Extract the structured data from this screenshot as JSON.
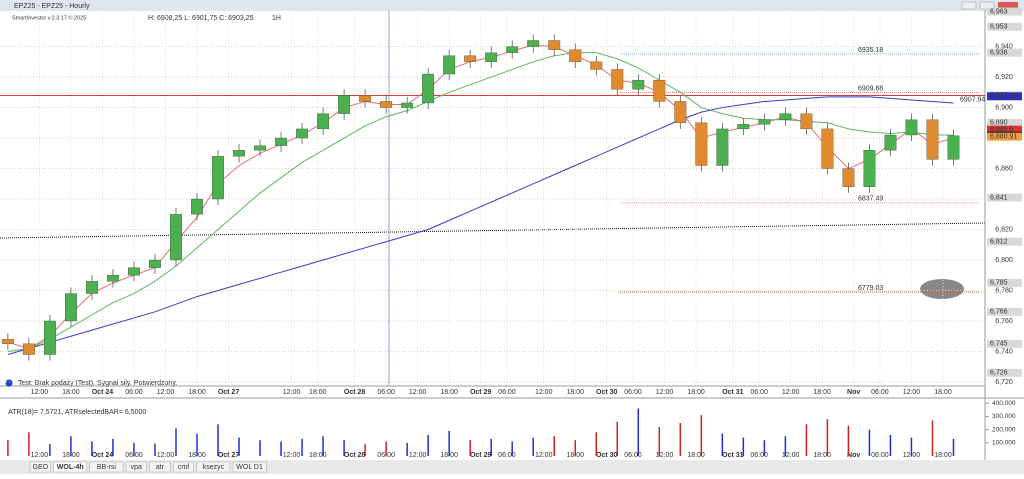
{
  "window": {
    "title": "EPZ25 - EPZ25 - Hourly"
  },
  "info": {
    "app": "SmartInvestor v.2.3.17 © 2025",
    "hlc": "H: 6908,25   L: 6901,75   C: 6903,25",
    "interval": "1H"
  },
  "status": "Test: Brak podaży (Test). Sygnał siły. Potwierdzony.",
  "tabs": [
    "GEO",
    "WOL-4h",
    "BB-rsi",
    "vpa",
    "atr",
    "cmf",
    "ksezyc",
    "WOL D1"
  ],
  "chart_data": [
    {
      "type": "candlestick",
      "x": [
        0,
        4,
        8,
        12,
        16,
        20,
        24,
        28,
        32,
        36,
        40,
        44,
        48,
        52,
        56,
        60,
        64,
        68,
        72,
        76,
        80,
        84,
        88,
        92,
        96,
        100,
        104,
        108,
        112,
        116,
        120,
        124,
        128,
        132,
        136,
        140,
        144,
        148,
        152,
        156,
        160,
        164,
        168,
        172,
        176,
        180
      ],
      "open": [
        6748,
        6745,
        6738,
        6760,
        6778,
        6786,
        6790,
        6795,
        6800,
        6830,
        6840,
        6868,
        6872,
        6875,
        6880,
        6886,
        6896,
        6908,
        6904,
        6900,
        6903,
        6922,
        6934,
        6930,
        6936,
        6940,
        6944,
        6938,
        6930,
        6925,
        6912,
        6918,
        6904,
        6890,
        6862,
        6886,
        6889,
        6892,
        6896,
        6886,
        6860,
        6848,
        6872,
        6882,
        6892,
        6866
      ],
      "high": [
        6752,
        6749,
        6764,
        6782,
        6790,
        6794,
        6799,
        6804,
        6834,
        6844,
        6872,
        6876,
        6879,
        6884,
        6890,
        6900,
        6912,
        6912,
        6908,
        6907,
        6926,
        6938,
        6938,
        6940,
        6944,
        6948,
        6948,
        6942,
        6934,
        6929,
        6922,
        6922,
        6908,
        6894,
        6890,
        6893,
        6896,
        6900,
        6900,
        6890,
        6864,
        6876,
        6886,
        6896,
        6896,
        6885.5
      ],
      "low": [
        6741,
        6734,
        6734,
        6756,
        6774,
        6782,
        6786,
        6791,
        6796,
        6826,
        6836,
        6864,
        6868,
        6871,
        6876,
        6882,
        6892,
        6900,
        6896,
        6896,
        6899,
        6918,
        6926,
        6926,
        6932,
        6936,
        6934,
        6926,
        6921,
        6908,
        6908,
        6900,
        6886,
        6858,
        6858,
        6882,
        6885,
        6888,
        6882,
        6856,
        6844,
        6844,
        6868,
        6878,
        6862,
        6862
      ],
      "close": [
        6745,
        6738,
        6760,
        6778,
        6786,
        6790,
        6795,
        6800,
        6830,
        6840,
        6868,
        6872,
        6875,
        6880,
        6886,
        6896,
        6908,
        6904,
        6900,
        6903,
        6922,
        6934,
        6930,
        6936,
        6940,
        6944,
        6938,
        6930,
        6925,
        6912,
        6918,
        6904,
        6890,
        6862,
        6886,
        6889,
        6892,
        6896,
        6886,
        6860,
        6848,
        6872,
        6882,
        6892,
        6866,
        6881.5
      ],
      "up_color": "#4caf50",
      "down_color": "#e08a30",
      "series": [
        {
          "color": "#e07070",
          "values": [
            6746,
            6742,
            6750,
            6765,
            6778,
            6785,
            6790,
            6795,
            6812,
            6828,
            6850,
            6862,
            6870,
            6876,
            6882,
            6890,
            6900,
            6904,
            6902,
            6902,
            6912,
            6925,
            6930,
            6933,
            6937,
            6941,
            6940,
            6934,
            6928,
            6918,
            6916,
            6910,
            6898,
            6880,
            6884,
            6887,
            6890,
            6894,
            6890,
            6874,
            6860,
            6866,
            6876,
            6886,
            6876,
            6880
          ]
        },
        {
          "color": "#5cb85c",
          "values": [
            6740,
            6742,
            6748,
            6756,
            6764,
            6772,
            6778,
            6786,
            6796,
            6808,
            6820,
            6832,
            6844,
            6854,
            6864,
            6872,
            6880,
            6888,
            6894,
            6898,
            6904,
            6910,
            6915,
            6920,
            6925,
            6930,
            6934,
            6936,
            6936,
            6932,
            6926,
            6918,
            6910,
            6900,
            6896,
            6893,
            6892,
            6892,
            6891,
            6890,
            6886,
            6884,
            6883,
            6884,
            6882,
            6882
          ]
        },
        {
          "color": "#3a3ad0",
          "values": [
            6738,
            6742,
            6746,
            6750,
            6754,
            6758,
            6762,
            6766,
            6771,
            6776,
            6780,
            6784,
            6788,
            6792,
            6796,
            6800,
            6804,
            6808,
            6812,
            6816,
            6820,
            6826,
            6832,
            6838,
            6844,
            6850,
            6856,
            6862,
            6868,
            6874,
            6880,
            6886,
            6892,
            6897,
            6900,
            6902,
            6904,
            6905,
            6906,
            6907,
            6907,
            6907,
            6906,
            6905,
            6904,
            6903
          ]
        }
      ],
      "xlim": [
        -1.5,
        186
      ],
      "xticks": [
        {
          "value": 6,
          "label": "12:00"
        },
        {
          "value": 12,
          "label": "18:00"
        },
        {
          "value": 18,
          "label": "Oct 24"
        },
        {
          "value": 24,
          "label": "06:00"
        },
        {
          "value": 30,
          "label": "12:00"
        },
        {
          "value": 36,
          "label": "18:00"
        },
        {
          "value": 42,
          "label": "Oct 27"
        },
        {
          "value": 54,
          "label": "12:00"
        },
        {
          "value": 59,
          "label": "18:00"
        },
        {
          "value": 66,
          "label": "Oct 28"
        },
        {
          "value": 72,
          "label": "06:00"
        },
        {
          "value": 78,
          "label": "12:00"
        },
        {
          "value": 84,
          "label": "18:00"
        },
        {
          "value": 90,
          "label": "Oct 29"
        },
        {
          "value": 95,
          "label": "06:00"
        },
        {
          "value": 102,
          "label": "12:00"
        },
        {
          "value": 108,
          "label": "18:00"
        },
        {
          "value": 114,
          "label": "Oct 30"
        },
        {
          "value": 119,
          "label": "06:00"
        },
        {
          "value": 125,
          "label": "12:00"
        },
        {
          "value": 131,
          "label": "18:00"
        },
        {
          "value": 138,
          "label": "Oct 31"
        },
        {
          "value": 143,
          "label": "06:00"
        },
        {
          "value": 149,
          "label": "12:00"
        },
        {
          "value": 155,
          "label": "18:00"
        },
        {
          "value": 161,
          "label": "Nov"
        },
        {
          "value": 166,
          "label": "06:00"
        },
        {
          "value": 172,
          "label": "12:00"
        },
        {
          "value": 178,
          "label": "18:00"
        }
      ],
      "ylim": [
        6718,
        6964
      ],
      "yticks": [
        {
          "value": 6720,
          "label": "6,720"
        },
        {
          "value": 6740,
          "label": "6,740"
        },
        {
          "value": 6760,
          "label": "6,760"
        },
        {
          "value": 6780,
          "label": "6,780"
        },
        {
          "value": 6800,
          "label": "6,800"
        },
        {
          "value": 6820,
          "label": "6,820"
        },
        {
          "value": 6840,
          "label": "6,840"
        },
        {
          "value": 6860,
          "label": "6,860"
        },
        {
          "value": 6880,
          "label": "6,880"
        },
        {
          "value": 6900,
          "label": "6,900"
        },
        {
          "value": 6920,
          "label": "6,920"
        },
        {
          "value": 6940,
          "label": "6,940"
        }
      ],
      "price_labels": [
        {
          "value": 6963,
          "label": "6,963",
          "color": "#d8d8d8"
        },
        {
          "value": 6953,
          "label": "6,953",
          "color": "#d8d8d8"
        },
        {
          "value": 6936,
          "label": "6,936",
          "color": "#d8d8d8"
        },
        {
          "value": 6908,
          "label": "6,908",
          "color": "#d8d8d8"
        },
        {
          "value": 6907.39,
          "label": "6,907.39",
          "color": "#3030c0"
        },
        {
          "value": 6890,
          "label": "6,890",
          "color": "#d8d8d8"
        },
        {
          "value": 6885.5,
          "label": "6,885.5",
          "color": "#e03030"
        },
        {
          "value": 6881.5,
          "label": "6,881.5",
          "color": "#111111"
        },
        {
          "value": 6880.91,
          "label": "6,880.91",
          "color": "#f0a040"
        },
        {
          "value": 6841,
          "label": "6,841",
          "color": "#d8d8d8"
        },
        {
          "value": 6812,
          "label": "6,812",
          "color": "#d8d8d8"
        },
        {
          "value": 6785,
          "label": "6,785",
          "color": "#d8d8d8"
        },
        {
          "value": 6766,
          "label": "6,766",
          "color": "#d8d8d8"
        },
        {
          "value": 6745,
          "label": "6,745",
          "color": "#d8d8d8"
        },
        {
          "value": 6726,
          "label": "6,726",
          "color": "#d8d8d8"
        }
      ],
      "resistance": {
        "value": 6907.94,
        "label": "6907.94",
        "color": "#d02020"
      },
      "levels": [
        {
          "value": 6935.18,
          "label": "6935.18",
          "color": "#7fb8d8"
        },
        {
          "value": 6909.88,
          "label": "6909.88",
          "color": "#e08080"
        },
        {
          "value": 6837.49,
          "label": "6837.49",
          "color": "#e8a0a0"
        },
        {
          "value": 6779.03,
          "label": "6779.03",
          "color": "#c0602a"
        }
      ]
    },
    {
      "type": "volume",
      "title": "ATR(18)= 7,5721, ATRselectedBAR= 6,5000",
      "values": [
        120000,
        180000,
        90000,
        150000,
        110000,
        130000,
        100000,
        95000,
        210000,
        170000,
        240000,
        140000,
        120000,
        110000,
        130000,
        150000,
        120000,
        90000,
        110000,
        100000,
        160000,
        190000,
        120000,
        130000,
        110000,
        140000,
        150000,
        120000,
        180000,
        260000,
        360000,
        220000,
        250000,
        310000,
        170000,
        140000,
        120000,
        150000,
        240000,
        280000,
        230000,
        200000,
        160000,
        140000,
        270000,
        130000
      ],
      "ylim": [
        0,
        440000
      ],
      "yticks": [
        {
          "value": 100000,
          "label": "100,000"
        },
        {
          "value": 200000,
          "label": "200,000"
        },
        {
          "value": 300000,
          "label": "300,000"
        },
        {
          "value": 400000,
          "label": "400,000"
        }
      ]
    }
  ]
}
